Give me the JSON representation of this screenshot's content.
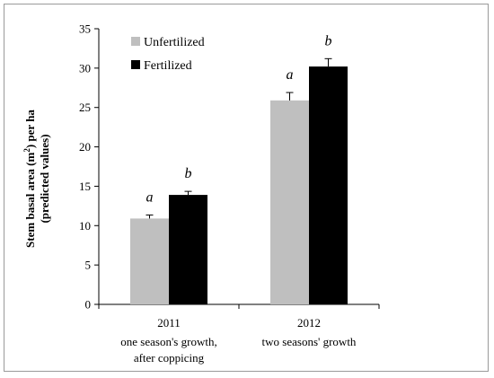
{
  "chart_data": {
    "type": "bar",
    "ylabel_line1_prefix": "Stem basal area (m",
    "ylabel_sup": "2",
    "ylabel_line1_suffix": ") per ha",
    "ylabel_line2": "(predicted values)",
    "ylim": [
      0,
      35
    ],
    "yticks": [
      0,
      5,
      10,
      15,
      20,
      25,
      30,
      35
    ],
    "grid": false,
    "legend_position": "top-left",
    "categories": [
      {
        "label": "2011",
        "sub1": "one season's growth,",
        "sub2": "after coppicing"
      },
      {
        "label": "2012",
        "sub1": "two seasons' growth",
        "sub2": ""
      }
    ],
    "series": [
      {
        "name": "Unfertilized",
        "color": "#bfbfbf",
        "values": [
          10.9,
          25.9
        ],
        "errors": [
          0.45,
          1.0
        ],
        "letters": [
          "a",
          "a"
        ]
      },
      {
        "name": "Fertilized",
        "color": "#000000",
        "values": [
          13.9,
          30.2
        ],
        "errors": [
          0.45,
          1.0
        ],
        "letters": [
          "b",
          "b"
        ]
      }
    ]
  }
}
